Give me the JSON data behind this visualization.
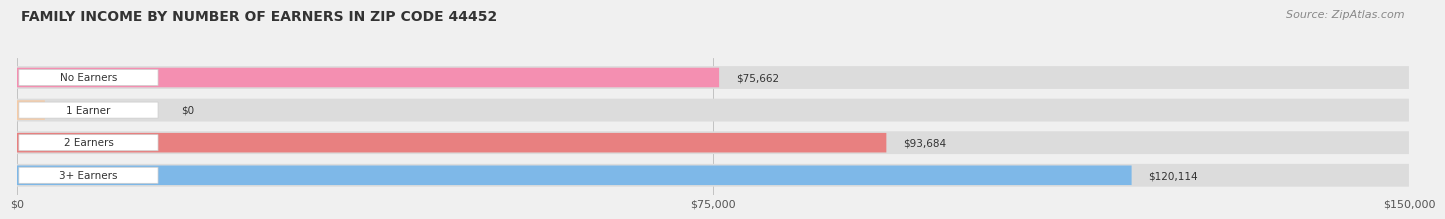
{
  "title": "FAMILY INCOME BY NUMBER OF EARNERS IN ZIP CODE 44452",
  "source": "Source: ZipAtlas.com",
  "categories": [
    "No Earners",
    "1 Earner",
    "2 Earners",
    "3+ Earners"
  ],
  "values": [
    75662,
    0,
    93684,
    120114
  ],
  "labels": [
    "$75,662",
    "$0",
    "$93,684",
    "$120,114"
  ],
  "bar_colors": [
    "#f48fb1",
    "#f5cba7",
    "#e88080",
    "#7eb8e8"
  ],
  "bar_bg_color": "#dcdcdc",
  "xmax": 150000,
  "xticks": [
    0,
    75000,
    150000
  ],
  "xticklabels": [
    "$0",
    "$75,000",
    "$150,000"
  ],
  "title_fontsize": 10,
  "source_fontsize": 8,
  "bar_label_fontsize": 7.5,
  "category_fontsize": 7.5,
  "fig_bg_color": "#f0f0f0"
}
